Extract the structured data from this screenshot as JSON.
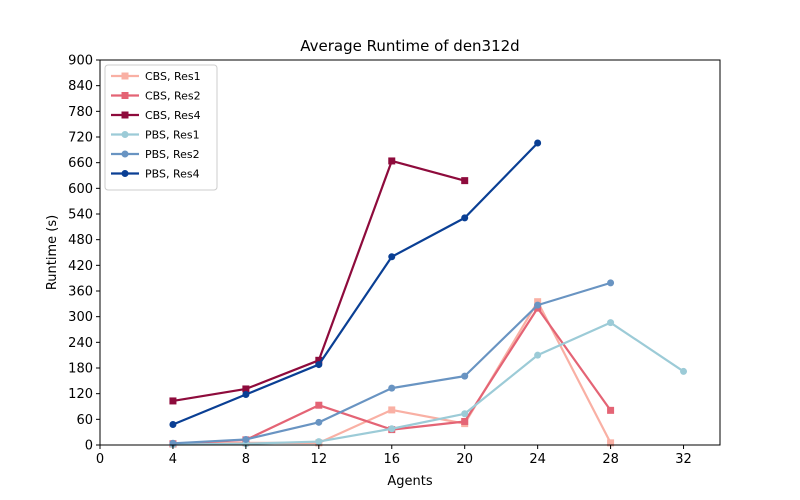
{
  "chart_data": {
    "type": "line",
    "title": "Average Runtime of den312d",
    "xlabel": "Agents",
    "ylabel": "Runtime (s)",
    "xlim": [
      0,
      34
    ],
    "ylim": [
      0,
      900
    ],
    "xticks": [
      0,
      4,
      8,
      12,
      16,
      20,
      24,
      28,
      32
    ],
    "yticks": [
      0,
      60,
      120,
      180,
      240,
      300,
      360,
      420,
      480,
      540,
      600,
      660,
      720,
      780,
      840,
      900
    ],
    "grid": false,
    "legend_position": "top-left",
    "series": [
      {
        "name": "CBS, Res1",
        "color": "#f9b0a4",
        "marker": "square",
        "x": [
          4,
          8,
          12,
          16,
          20,
          24,
          28
        ],
        "y": [
          2,
          5,
          5,
          82,
          50,
          335,
          5
        ]
      },
      {
        "name": "CBS, Res2",
        "color": "#e46475",
        "marker": "square",
        "x": [
          4,
          8,
          12,
          16,
          20,
          24,
          28
        ],
        "y": [
          3,
          12,
          93,
          36,
          55,
          320,
          81
        ]
      },
      {
        "name": "CBS, Res4",
        "color": "#8e0b3c",
        "marker": "square",
        "x": [
          4,
          8,
          12,
          16,
          20
        ],
        "y": [
          103,
          131,
          198,
          664,
          618
        ]
      },
      {
        "name": "PBS, Res1",
        "color": "#9ccbd7",
        "marker": "circle",
        "x": [
          4,
          8,
          12,
          16,
          20,
          24,
          28,
          32
        ],
        "y": [
          1,
          3,
          8,
          38,
          73,
          210,
          286,
          172
        ]
      },
      {
        "name": "PBS, Res2",
        "color": "#6994c2",
        "marker": "circle",
        "x": [
          4,
          8,
          12,
          16,
          20,
          24,
          28
        ],
        "y": [
          4,
          13,
          53,
          133,
          161,
          327,
          379
        ]
      },
      {
        "name": "PBS, Res4",
        "color": "#0a3f94",
        "marker": "circle",
        "x": [
          4,
          8,
          12,
          16,
          20,
          24
        ],
        "y": [
          48,
          118,
          188,
          440,
          531,
          706
        ]
      }
    ]
  }
}
